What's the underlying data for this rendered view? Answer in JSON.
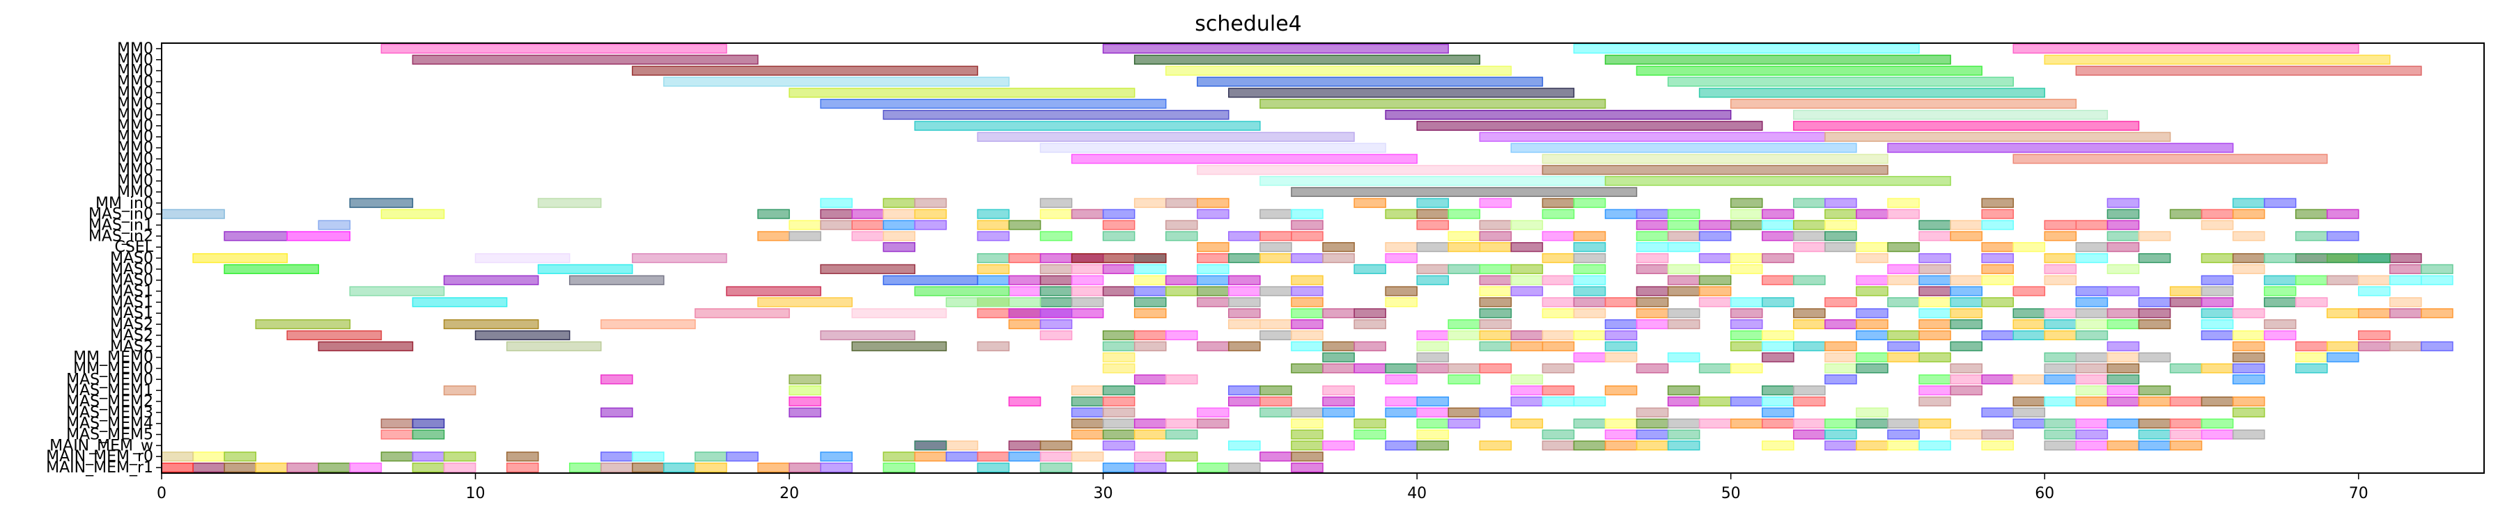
{
  "chart_data": {
    "type": "gantt",
    "title": "schedule4",
    "xlabel": "",
    "ylabel": "",
    "xlim": [
      0,
      74
    ],
    "xticks": [
      0,
      10,
      20,
      30,
      40,
      50,
      60,
      70
    ],
    "grid": false,
    "rows": [
      "MM0",
      "MM0",
      "MM0",
      "MM0",
      "MM0",
      "MM0",
      "MM0",
      "MM0",
      "MM0",
      "MM0",
      "MM0",
      "MM0",
      "MM0",
      "MM0",
      "MM_in0",
      "MAS_in0",
      "MAS_in1",
      "MAS_in2",
      "CSEL",
      "MAS0",
      "MAS0",
      "MAS0",
      "MAS1",
      "MAS1",
      "MAS1",
      "MAS2",
      "MAS2",
      "MAS2",
      "MM_MEM0",
      "MM_MEM0",
      "MAS_MEM0",
      "MAS_MEM1",
      "MAS_MEM2",
      "MAS_MEM3",
      "MAS_MEM4",
      "MAS_MEM5",
      "MAIN_MEM_w",
      "MAIN_MEM_r0",
      "MAIN_MEM_r1"
    ],
    "tasks": [
      {
        "row": 0,
        "start": 7,
        "end": 18,
        "color": "#ff66cc"
      },
      {
        "row": 0,
        "start": 30,
        "end": 41,
        "color": "#9933cc"
      },
      {
        "row": 0,
        "start": 45,
        "end": 56,
        "color": "#66ffff"
      },
      {
        "row": 0,
        "start": 59,
        "end": 70,
        "color": "#ff66cc"
      },
      {
        "row": 1,
        "start": 8,
        "end": 19,
        "color": "#993366"
      },
      {
        "row": 1,
        "start": 31,
        "end": 42,
        "color": "#336633"
      },
      {
        "row": 1,
        "start": 46,
        "end": 57,
        "color": "#33cc33"
      },
      {
        "row": 1,
        "start": 60,
        "end": 71,
        "color": "#ffdd44"
      },
      {
        "row": 2,
        "start": 15,
        "end": 26,
        "color": "#993333"
      },
      {
        "row": 2,
        "start": 32,
        "end": 43,
        "color": "#eeff66"
      },
      {
        "row": 2,
        "start": 47,
        "end": 58,
        "color": "#44ee44"
      },
      {
        "row": 2,
        "start": 61,
        "end": 72,
        "color": "#dd6666"
      },
      {
        "row": 3,
        "start": 16,
        "end": 27,
        "color": "#99ddee"
      },
      {
        "row": 3,
        "start": 33,
        "end": 44,
        "color": "#3366dd"
      },
      {
        "row": 3,
        "start": 48,
        "end": 59,
        "color": "#66dd99"
      },
      {
        "row": 4,
        "start": 20,
        "end": 31,
        "color": "#ccee44"
      },
      {
        "row": 4,
        "start": 34,
        "end": 45,
        "color": "#333355"
      },
      {
        "row": 4,
        "start": 49,
        "end": 60,
        "color": "#33ccaa"
      },
      {
        "row": 5,
        "start": 21,
        "end": 32,
        "color": "#4477ee"
      },
      {
        "row": 5,
        "start": 35,
        "end": 46,
        "color": "#88bb33"
      },
      {
        "row": 5,
        "start": 50,
        "end": 61,
        "color": "#ee9977"
      },
      {
        "row": 6,
        "start": 23,
        "end": 34,
        "color": "#5555cc"
      },
      {
        "row": 6,
        "start": 39,
        "end": 50,
        "color": "#7722aa"
      },
      {
        "row": 6,
        "start": 52,
        "end": 62,
        "color": "#bbeecc"
      },
      {
        "row": 7,
        "start": 24,
        "end": 35,
        "color": "#33cccc"
      },
      {
        "row": 7,
        "start": 40,
        "end": 51,
        "color": "#882266"
      },
      {
        "row": 7,
        "start": 52,
        "end": 63,
        "color": "#ff33aa"
      },
      {
        "row": 8,
        "start": 26,
        "end": 38,
        "color": "#bbaaee"
      },
      {
        "row": 8,
        "start": 42,
        "end": 53,
        "color": "#cc66ff"
      },
      {
        "row": 8,
        "start": 53,
        "end": 64,
        "color": "#ddaa88"
      },
      {
        "row": 9,
        "start": 28,
        "end": 39,
        "color": "#ddddff"
      },
      {
        "row": 9,
        "start": 43,
        "end": 54,
        "color": "#88ccff"
      },
      {
        "row": 9,
        "start": 55,
        "end": 66,
        "color": "#aa44ee"
      },
      {
        "row": 10,
        "start": 29,
        "end": 40,
        "color": "#ff55ff"
      },
      {
        "row": 10,
        "start": 44,
        "end": 55,
        "color": "#ddeeaa"
      },
      {
        "row": 10,
        "start": 59,
        "end": 69,
        "color": "#ee8877"
      },
      {
        "row": 11,
        "start": 33,
        "end": 44,
        "color": "#ffccdd"
      },
      {
        "row": 11,
        "start": 44,
        "end": 55,
        "color": "#aa7755"
      },
      {
        "row": 12,
        "start": 35,
        "end": 46,
        "color": "#aaffee"
      },
      {
        "row": 12,
        "start": 46,
        "end": 57,
        "color": "#99dd55"
      },
      {
        "row": 13,
        "start": 36,
        "end": 47,
        "color": "#777777"
      },
      {
        "row": 14,
        "start": 6,
        "end": 8,
        "color": "#336688"
      },
      {
        "row": 14,
        "start": 12,
        "end": 14,
        "color": "#bbddaa"
      },
      {
        "row": 15,
        "start": 0,
        "end": 2,
        "color": "#88bbdd"
      },
      {
        "row": 15,
        "start": 7,
        "end": 9,
        "color": "#eeff55"
      },
      {
        "row": 16,
        "start": 5,
        "end": 6,
        "color": "#88aaee"
      },
      {
        "row": 17,
        "start": 2,
        "end": 4,
        "color": "#9933cc"
      },
      {
        "row": 17,
        "start": 4,
        "end": 6,
        "color": "#ff33ff"
      },
      {
        "row": 18,
        "start": 23,
        "end": 24,
        "color": "#9933cc"
      },
      {
        "row": 19,
        "start": 1,
        "end": 4,
        "color": "#ffee33"
      },
      {
        "row": 19,
        "start": 10,
        "end": 13,
        "color": "#eeddff"
      },
      {
        "row": 19,
        "start": 15,
        "end": 18,
        "color": "#dd88bb"
      },
      {
        "row": 19,
        "start": 29,
        "end": 32,
        "color": "#992222"
      },
      {
        "row": 19,
        "start": 68,
        "end": 71,
        "color": "#339955"
      },
      {
        "row": 20,
        "start": 2,
        "end": 5,
        "color": "#33ee33"
      },
      {
        "row": 20,
        "start": 12,
        "end": 15,
        "color": "#33eeee"
      },
      {
        "row": 20,
        "start": 21,
        "end": 24,
        "color": "#993344"
      },
      {
        "row": 21,
        "start": 9,
        "end": 12,
        "color": "#9933cc"
      },
      {
        "row": 21,
        "start": 13,
        "end": 16,
        "color": "#777788"
      },
      {
        "row": 21,
        "start": 23,
        "end": 26,
        "color": "#3366ee"
      },
      {
        "row": 22,
        "start": 6,
        "end": 9,
        "color": "#88ddaa"
      },
      {
        "row": 22,
        "start": 18,
        "end": 21,
        "color": "#cc3355"
      },
      {
        "row": 22,
        "start": 24,
        "end": 27,
        "color": "#55ee55"
      },
      {
        "row": 23,
        "start": 8,
        "end": 11,
        "color": "#33eeee"
      },
      {
        "row": 23,
        "start": 19,
        "end": 22,
        "color": "#ffcc44"
      },
      {
        "row": 23,
        "start": 25,
        "end": 28,
        "color": "#99ee99"
      },
      {
        "row": 24,
        "start": 17,
        "end": 20,
        "color": "#ee88aa"
      },
      {
        "row": 24,
        "start": 22,
        "end": 25,
        "color": "#ffccdd"
      },
      {
        "row": 24,
        "start": 27,
        "end": 30,
        "color": "#dd33dd"
      },
      {
        "row": 25,
        "start": 3,
        "end": 6,
        "color": "#99bb33"
      },
      {
        "row": 25,
        "start": 9,
        "end": 12,
        "color": "#aa8822"
      },
      {
        "row": 25,
        "start": 14,
        "end": 17,
        "color": "#ffaa88"
      },
      {
        "row": 26,
        "start": 4,
        "end": 7,
        "color": "#dd4444"
      },
      {
        "row": 26,
        "start": 10,
        "end": 13,
        "color": "#333355"
      },
      {
        "row": 26,
        "start": 21,
        "end": 24,
        "color": "#cc88aa"
      },
      {
        "row": 27,
        "start": 5,
        "end": 8,
        "color": "#992233"
      },
      {
        "row": 27,
        "start": 11,
        "end": 14,
        "color": "#bbcc99"
      },
      {
        "row": 27,
        "start": 22,
        "end": 25,
        "color": "#556633"
      },
      {
        "row": 28,
        "start": 30,
        "end": 31,
        "color": "#ffee66"
      },
      {
        "row": 29,
        "start": 30,
        "end": 31,
        "color": "#ffee66"
      },
      {
        "row": 30,
        "start": 14,
        "end": 15,
        "color": "#ee33cc"
      },
      {
        "row": 30,
        "start": 20,
        "end": 21,
        "color": "#88aa44"
      },
      {
        "row": 31,
        "start": 9,
        "end": 10,
        "color": "#dd9977"
      },
      {
        "row": 31,
        "start": 20,
        "end": 21,
        "color": "#ccff66"
      },
      {
        "row": 32,
        "start": 20,
        "end": 21,
        "color": "#ff33cc"
      },
      {
        "row": 32,
        "start": 27,
        "end": 28,
        "color": "#ff33cc"
      },
      {
        "row": 33,
        "start": 14,
        "end": 15,
        "color": "#9933cc"
      },
      {
        "row": 33,
        "start": 20,
        "end": 21,
        "color": "#9933cc"
      },
      {
        "row": 34,
        "start": 7,
        "end": 8,
        "color": "#aa6655"
      },
      {
        "row": 34,
        "start": 8,
        "end": 9,
        "color": "#3333aa"
      },
      {
        "row": 35,
        "start": 7,
        "end": 8,
        "color": "#ff7777"
      },
      {
        "row": 35,
        "start": 8,
        "end": 9,
        "color": "#33aa55"
      },
      {
        "row": 36,
        "start": 24,
        "end": 25,
        "color": "#338866"
      },
      {
        "row": 37,
        "start": 0,
        "end": 1,
        "color": "#ddcc88"
      },
      {
        "row": 38,
        "start": 0,
        "end": 1,
        "color": "#ff3333"
      }
    ],
    "dense": {
      "seed": 4242,
      "fill_prob": 0.55,
      "palette": [
        "#ff6666",
        "#66ff66",
        "#6666ff",
        "#ffcc33",
        "#33cccc",
        "#cc33cc",
        "#99cc33",
        "#ff99cc",
        "#3399ff",
        "#996633",
        "#cc6699",
        "#66cc99",
        "#ffff66",
        "#9966ff",
        "#ff9933",
        "#339966",
        "#cc9999",
        "#66ffff",
        "#ccff99",
        "#ff66ff",
        "#669933",
        "#993366",
        "#aaaaaa",
        "#ffcc99"
      ],
      "regions": [
        {
          "rows": [
            14,
            15,
            16,
            17
          ],
          "start": 19,
          "end": 70
        },
        {
          "rows": [
            18
          ],
          "start": 33,
          "end": 63
        },
        {
          "rows": [
            19,
            20,
            21,
            22,
            23,
            24,
            25,
            26,
            27
          ],
          "start": 26,
          "end": 73
        },
        {
          "rows": [
            28,
            29
          ],
          "start": 36,
          "end": 70
        },
        {
          "rows": [
            30,
            31,
            32,
            33,
            34,
            35
          ],
          "start": 29,
          "end": 67
        },
        {
          "rows": [
            36
          ],
          "start": 24,
          "end": 66
        },
        {
          "rows": [
            37,
            38
          ],
          "start": 1,
          "end": 37
        }
      ]
    }
  }
}
